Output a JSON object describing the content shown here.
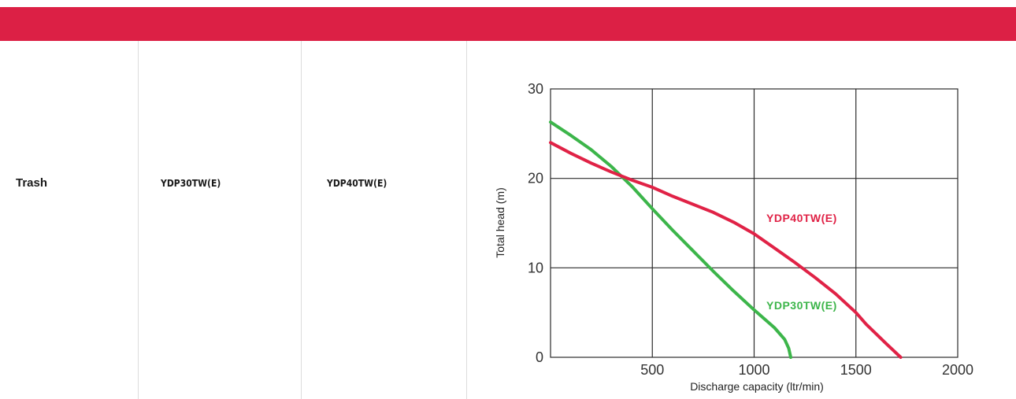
{
  "table": {
    "header_color": "#dc2045",
    "row": {
      "type": "Trash",
      "model_1": "YDP30TW(E)",
      "model_2": "YDP40TW(E)"
    }
  },
  "chart_data": {
    "type": "line",
    "title": "",
    "xlabel": "Discharge capacity (ltr/min)",
    "ylabel": "Total head (m)",
    "xlim": [
      0,
      2000
    ],
    "ylim": [
      0,
      30
    ],
    "x_ticks": [
      "500",
      "1000",
      "1500",
      "2000"
    ],
    "y_ticks": [
      "0",
      "10",
      "20",
      "30"
    ],
    "grid": true,
    "series": [
      {
        "name": "YDP30TW(E)",
        "color": "#3cb54a",
        "points": [
          [
            0,
            26.3
          ],
          [
            100,
            24.8
          ],
          [
            200,
            23.2
          ],
          [
            300,
            21.3
          ],
          [
            400,
            19.1
          ],
          [
            500,
            16.6
          ],
          [
            600,
            14.2
          ],
          [
            700,
            11.9
          ],
          [
            800,
            9.6
          ],
          [
            900,
            7.4
          ],
          [
            1000,
            5.3
          ],
          [
            1100,
            3.3
          ],
          [
            1150,
            2.0
          ],
          [
            1170,
            1.0
          ],
          [
            1180,
            0
          ]
        ]
      },
      {
        "name": "YDP40TW(E)",
        "color": "#e02246",
        "points": [
          [
            0,
            24.0
          ],
          [
            100,
            22.8
          ],
          [
            200,
            21.7
          ],
          [
            300,
            20.7
          ],
          [
            400,
            19.8
          ],
          [
            500,
            19.0
          ],
          [
            600,
            18.0
          ],
          [
            700,
            17.1
          ],
          [
            800,
            16.2
          ],
          [
            900,
            15.1
          ],
          [
            1000,
            13.8
          ],
          [
            1100,
            12.2
          ],
          [
            1200,
            10.6
          ],
          [
            1300,
            8.9
          ],
          [
            1400,
            7.1
          ],
          [
            1500,
            5.0
          ],
          [
            1550,
            3.7
          ],
          [
            1650,
            1.5
          ],
          [
            1720,
            0
          ]
        ]
      }
    ]
  }
}
